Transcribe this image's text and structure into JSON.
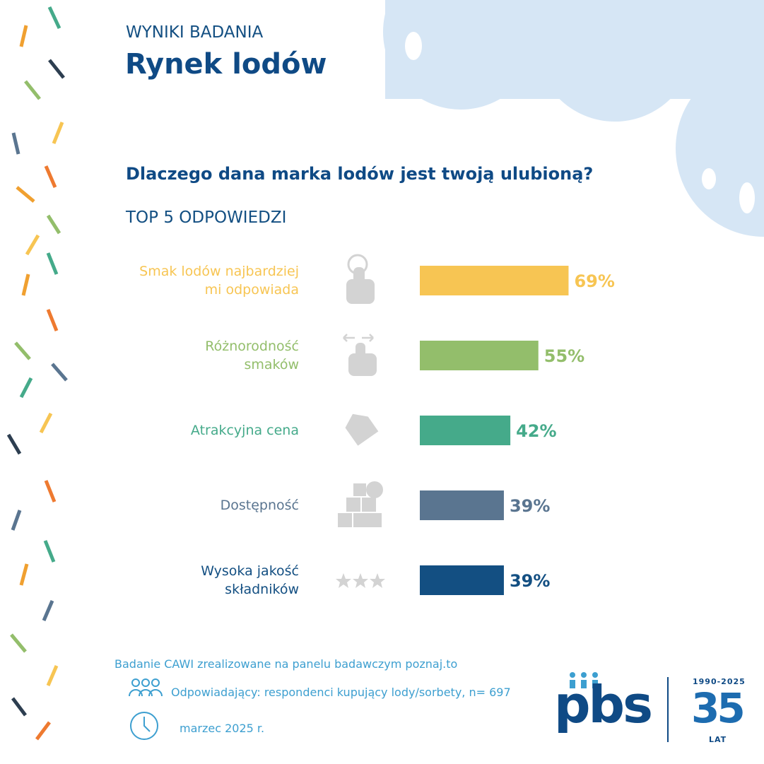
{
  "header": {
    "kicker": "WYNIKI BADANIA",
    "title": "Rynek lodów"
  },
  "chart_data": {
    "type": "hbar",
    "title": "Dlaczego dana marka lodów jest twoją ulubioną?",
    "subtitle": "TOP 5 ODPOWIEDZI",
    "categories": [
      "Smak lodów najbardziej\nmi odpowiada",
      "Różnorodność\nsmaków",
      "Atrakcyjna cena",
      "Dostępność",
      "Wysoka jakość\nskładników"
    ],
    "values": [
      69,
      55,
      42,
      39,
      39
    ],
    "value_labels": [
      "69%",
      "55%",
      "42%",
      "39%",
      "39%"
    ],
    "colors": [
      "#f7c553",
      "#93be6b",
      "#45aa8a",
      "#5a7590",
      "#134f82"
    ]
  },
  "footer": {
    "method": "Badanie CAWI zrealizowane na panelu badawczym poznaj.to",
    "respondents": "Odpowiadający: respondenci kupujący lody/sorbety, n= 697",
    "date": "marzec 2025 r.",
    "logo": "pbs",
    "anniversary_years": "1990-2025",
    "anniversary_number": "35",
    "anniversary_unit": "LAT"
  }
}
